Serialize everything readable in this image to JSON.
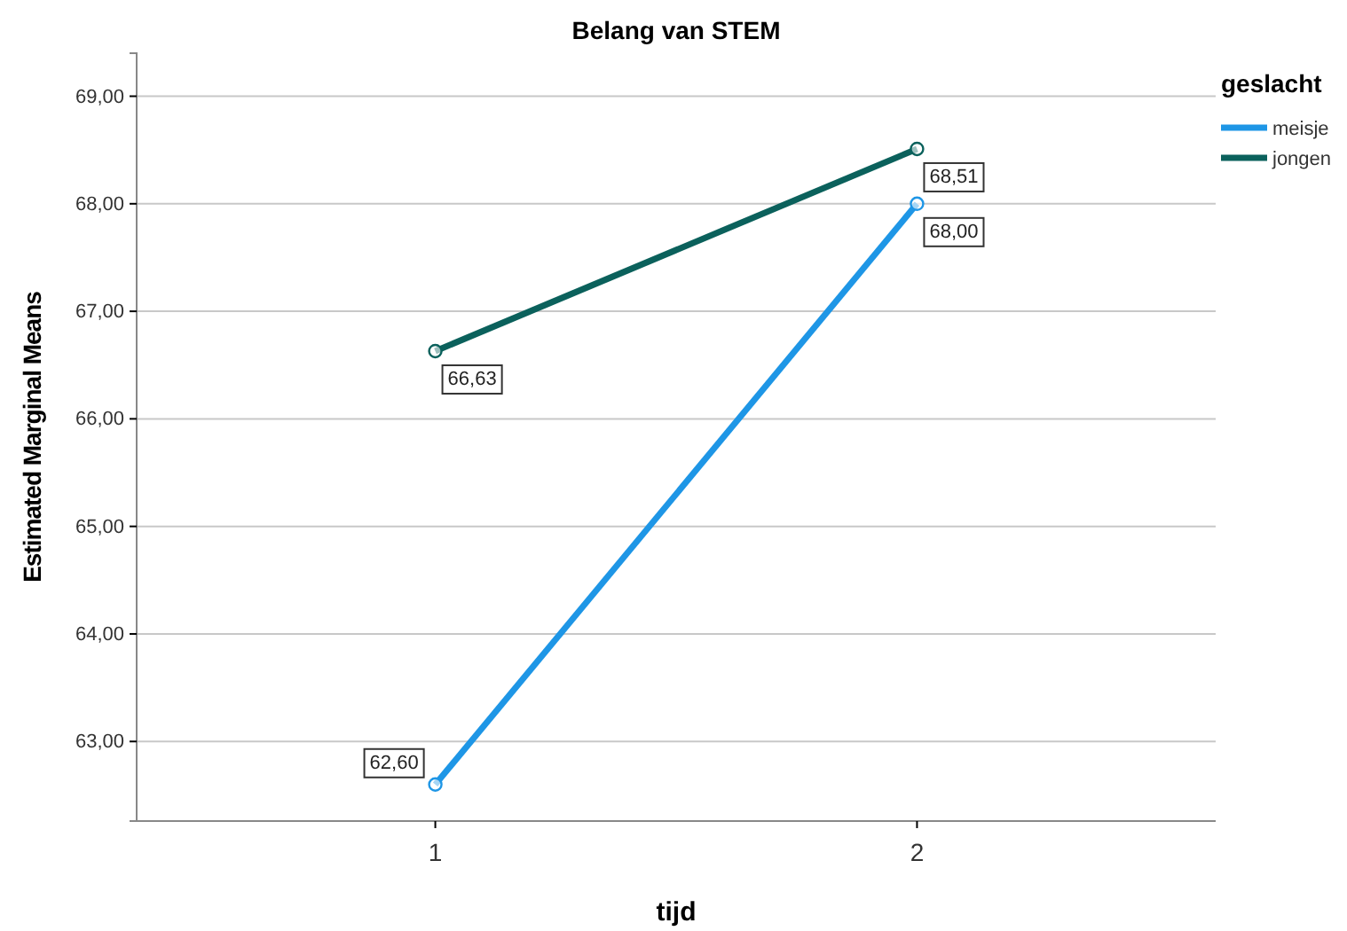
{
  "chart_data": {
    "type": "line",
    "title": "Belang van STEM",
    "xlabel": "tijd",
    "ylabel": "Estimated Marginal Means",
    "legend_title": "geslacht",
    "categories": [
      "1",
      "2"
    ],
    "series": [
      {
        "name": "meisje",
        "color": "#1e96e6",
        "values": [
          62.6,
          68.0
        ],
        "value_labels": [
          "62,60",
          "68,00"
        ]
      },
      {
        "name": "jongen",
        "color": "#0b615c",
        "values": [
          66.63,
          68.51
        ],
        "value_labels": [
          "66,63",
          "68,51"
        ]
      }
    ],
    "ylim": [
      62.26,
      69.4
    ],
    "yticks": [
      {
        "value": 63,
        "label": "63,00"
      },
      {
        "value": 64,
        "label": "64,00"
      },
      {
        "value": 65,
        "label": "65,00"
      },
      {
        "value": 66,
        "label": "66,00"
      },
      {
        "value": 67,
        "label": "67,00"
      },
      {
        "value": 68,
        "label": "68,00"
      },
      {
        "value": 69,
        "label": "69,00"
      }
    ],
    "grid": "y",
    "legend": "top right",
    "marker": "circle",
    "line_style": "solid"
  }
}
